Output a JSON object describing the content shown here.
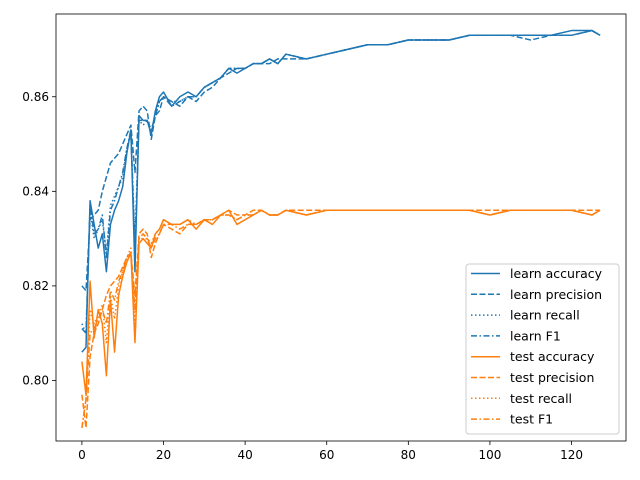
{
  "chart_data": {
    "type": "line",
    "title": "",
    "xlabel": "",
    "ylabel": "",
    "xlim": [
      -6.35,
      133.35
    ],
    "ylim": [
      0.7872,
      0.8775
    ],
    "xticks": [
      0,
      20,
      40,
      60,
      80,
      100,
      120
    ],
    "yticks": [
      0.8,
      0.82,
      0.84,
      0.86
    ],
    "ytick_labels": [
      "0.80",
      "0.82",
      "0.84",
      "0.86"
    ],
    "grid": false,
    "legend_position": "lower right",
    "colors": {
      "learn": "#1f77b4",
      "test": "#ff7f0e"
    },
    "series": [
      {
        "name": "learn accuracy",
        "color": "#1f77b4",
        "dash": "solid",
        "x": [
          0,
          1,
          2,
          3,
          4,
          5,
          6,
          7,
          8,
          9,
          10,
          11,
          12,
          13,
          14,
          15,
          16,
          17,
          18,
          19,
          20,
          22,
          24,
          26,
          28,
          30,
          32,
          34,
          36,
          38,
          40,
          42,
          44,
          46,
          48,
          50,
          55,
          60,
          65,
          70,
          75,
          80,
          85,
          90,
          95,
          100,
          105,
          110,
          115,
          120,
          125,
          127
        ],
        "y": [
          0.806,
          0.807,
          0.838,
          0.833,
          0.828,
          0.831,
          0.823,
          0.833,
          0.836,
          0.838,
          0.841,
          0.848,
          0.853,
          0.823,
          0.856,
          0.855,
          0.855,
          0.852,
          0.857,
          0.86,
          0.861,
          0.858,
          0.86,
          0.861,
          0.86,
          0.862,
          0.863,
          0.864,
          0.866,
          0.865,
          0.866,
          0.867,
          0.867,
          0.868,
          0.867,
          0.869,
          0.868,
          0.869,
          0.87,
          0.871,
          0.871,
          0.872,
          0.872,
          0.872,
          0.873,
          0.873,
          0.873,
          0.873,
          0.873,
          0.874,
          0.874,
          0.873
        ]
      },
      {
        "name": "learn precision",
        "color": "#1f77b4",
        "dash": "dashed",
        "x": [
          0,
          1,
          2,
          3,
          4,
          5,
          6,
          7,
          8,
          9,
          10,
          11,
          12,
          13,
          14,
          15,
          16,
          17,
          18,
          19,
          20,
          22,
          24,
          26,
          28,
          30,
          32,
          34,
          36,
          38,
          40,
          42,
          44,
          46,
          48,
          50,
          55,
          60,
          65,
          70,
          75,
          80,
          85,
          90,
          95,
          100,
          105,
          110,
          115,
          120,
          125,
          127
        ],
        "y": [
          0.82,
          0.819,
          0.834,
          0.835,
          0.836,
          0.84,
          0.843,
          0.846,
          0.847,
          0.848,
          0.85,
          0.852,
          0.854,
          0.844,
          0.857,
          0.858,
          0.857,
          0.851,
          0.856,
          0.857,
          0.86,
          0.859,
          0.858,
          0.86,
          0.859,
          0.861,
          0.862,
          0.864,
          0.865,
          0.866,
          0.866,
          0.867,
          0.867,
          0.867,
          0.868,
          0.868,
          0.868,
          0.869,
          0.87,
          0.871,
          0.871,
          0.872,
          0.872,
          0.872,
          0.873,
          0.873,
          0.873,
          0.872,
          0.873,
          0.873,
          0.874,
          0.873
        ]
      },
      {
        "name": "learn recall",
        "color": "#1f77b4",
        "dash": "dotted",
        "x": [
          0,
          1,
          2,
          3,
          4,
          5,
          6,
          7,
          8,
          9,
          10,
          11,
          12,
          13,
          14,
          15,
          16,
          17,
          18,
          19,
          20,
          22,
          24,
          26,
          28,
          30,
          32,
          34,
          36,
          38,
          40,
          42,
          44,
          46,
          48,
          50,
          55,
          60,
          65,
          70,
          75,
          80,
          85,
          90,
          95,
          100,
          105,
          110,
          115,
          120,
          125,
          127
        ],
        "y": [
          0.812,
          0.81,
          0.836,
          0.83,
          0.832,
          0.834,
          0.827,
          0.837,
          0.839,
          0.841,
          0.843,
          0.849,
          0.852,
          0.829,
          0.855,
          0.854,
          0.855,
          0.853,
          0.856,
          0.859,
          0.86,
          0.859,
          0.859,
          0.86,
          0.86,
          0.862,
          0.863,
          0.864,
          0.866,
          0.866,
          0.866,
          0.867,
          0.867,
          0.868,
          0.867,
          0.869,
          0.868,
          0.869,
          0.87,
          0.871,
          0.871,
          0.872,
          0.872,
          0.872,
          0.873,
          0.873,
          0.873,
          0.873,
          0.873,
          0.873,
          0.874,
          0.873
        ]
      },
      {
        "name": "learn F1",
        "color": "#1f77b4",
        "dash": "dashdot",
        "x": [
          0,
          1,
          2,
          3,
          4,
          5,
          6,
          7,
          8,
          9,
          10,
          11,
          12,
          13,
          14,
          15,
          16,
          17,
          18,
          19,
          20,
          22,
          24,
          26,
          28,
          30,
          32,
          34,
          36,
          38,
          40,
          42,
          44,
          46,
          48,
          50,
          55,
          60,
          65,
          70,
          75,
          80,
          85,
          90,
          95,
          100,
          105,
          110,
          115,
          120,
          125,
          127
        ],
        "y": [
          0.811,
          0.81,
          0.837,
          0.831,
          0.832,
          0.835,
          0.826,
          0.836,
          0.838,
          0.841,
          0.844,
          0.849,
          0.853,
          0.828,
          0.855,
          0.855,
          0.855,
          0.853,
          0.856,
          0.859,
          0.86,
          0.858,
          0.859,
          0.86,
          0.86,
          0.862,
          0.863,
          0.864,
          0.866,
          0.866,
          0.866,
          0.867,
          0.867,
          0.868,
          0.867,
          0.869,
          0.868,
          0.869,
          0.87,
          0.871,
          0.871,
          0.872,
          0.872,
          0.872,
          0.873,
          0.873,
          0.873,
          0.873,
          0.873,
          0.873,
          0.874,
          0.873
        ]
      },
      {
        "name": "test accuracy",
        "color": "#ff7f0e",
        "dash": "solid",
        "x": [
          0,
          1,
          2,
          3,
          4,
          5,
          6,
          7,
          8,
          9,
          10,
          11,
          12,
          13,
          14,
          15,
          16,
          17,
          18,
          19,
          20,
          22,
          24,
          26,
          28,
          30,
          32,
          34,
          36,
          38,
          40,
          42,
          44,
          46,
          48,
          50,
          55,
          60,
          65,
          70,
          75,
          80,
          85,
          90,
          95,
          100,
          105,
          110,
          115,
          120,
          125,
          127
        ],
        "y": [
          0.804,
          0.797,
          0.821,
          0.809,
          0.815,
          0.812,
          0.801,
          0.817,
          0.806,
          0.818,
          0.822,
          0.825,
          0.827,
          0.808,
          0.829,
          0.83,
          0.829,
          0.828,
          0.831,
          0.832,
          0.834,
          0.833,
          0.833,
          0.834,
          0.832,
          0.834,
          0.833,
          0.835,
          0.836,
          0.833,
          0.834,
          0.835,
          0.836,
          0.835,
          0.835,
          0.836,
          0.835,
          0.836,
          0.836,
          0.836,
          0.836,
          0.836,
          0.836,
          0.836,
          0.836,
          0.835,
          0.836,
          0.836,
          0.836,
          0.836,
          0.835,
          0.836
        ]
      },
      {
        "name": "test precision",
        "color": "#ff7f0e",
        "dash": "dashed",
        "x": [
          0,
          1,
          2,
          3,
          4,
          5,
          6,
          7,
          8,
          9,
          10,
          11,
          12,
          13,
          14,
          15,
          16,
          17,
          18,
          19,
          20,
          22,
          24,
          26,
          28,
          30,
          32,
          34,
          36,
          38,
          40,
          42,
          44,
          46,
          48,
          50,
          55,
          60,
          65,
          70,
          75,
          80,
          85,
          90,
          95,
          100,
          105,
          110,
          115,
          120,
          125,
          127
        ],
        "y": [
          0.797,
          0.79,
          0.805,
          0.81,
          0.812,
          0.815,
          0.818,
          0.82,
          0.821,
          0.822,
          0.824,
          0.826,
          0.827,
          0.818,
          0.831,
          0.832,
          0.831,
          0.826,
          0.829,
          0.831,
          0.833,
          0.832,
          0.831,
          0.833,
          0.833,
          0.834,
          0.834,
          0.835,
          0.836,
          0.835,
          0.835,
          0.836,
          0.836,
          0.835,
          0.835,
          0.836,
          0.836,
          0.836,
          0.836,
          0.836,
          0.836,
          0.836,
          0.836,
          0.836,
          0.836,
          0.836,
          0.836,
          0.836,
          0.836,
          0.836,
          0.836,
          0.836
        ]
      },
      {
        "name": "test recall",
        "color": "#ff7f0e",
        "dash": "dotted",
        "x": [
          0,
          1,
          2,
          3,
          4,
          5,
          6,
          7,
          8,
          9,
          10,
          11,
          12,
          13,
          14,
          15,
          16,
          17,
          18,
          19,
          20,
          22,
          24,
          26,
          28,
          30,
          32,
          34,
          36,
          38,
          40,
          42,
          44,
          46,
          48,
          50,
          55,
          60,
          65,
          70,
          75,
          80,
          85,
          90,
          95,
          100,
          105,
          110,
          115,
          120,
          125,
          127
        ],
        "y": [
          0.79,
          0.796,
          0.815,
          0.812,
          0.814,
          0.816,
          0.808,
          0.818,
          0.813,
          0.82,
          0.823,
          0.826,
          0.828,
          0.812,
          0.83,
          0.83,
          0.83,
          0.829,
          0.831,
          0.832,
          0.834,
          0.833,
          0.833,
          0.834,
          0.833,
          0.834,
          0.834,
          0.835,
          0.835,
          0.834,
          0.835,
          0.835,
          0.836,
          0.835,
          0.835,
          0.836,
          0.835,
          0.836,
          0.836,
          0.836,
          0.836,
          0.836,
          0.836,
          0.836,
          0.836,
          0.835,
          0.836,
          0.836,
          0.836,
          0.836,
          0.835,
          0.836
        ]
      },
      {
        "name": "test F1",
        "color": "#ff7f0e",
        "dash": "dashdot",
        "x": [
          0,
          1,
          2,
          3,
          4,
          5,
          6,
          7,
          8,
          9,
          10,
          11,
          12,
          13,
          14,
          15,
          16,
          17,
          18,
          19,
          20,
          22,
          24,
          26,
          28,
          30,
          32,
          34,
          36,
          38,
          40,
          42,
          44,
          46,
          48,
          50,
          55,
          60,
          65,
          70,
          75,
          80,
          85,
          90,
          95,
          100,
          105,
          110,
          115,
          120,
          125,
          127
        ],
        "y": [
          0.79,
          0.796,
          0.81,
          0.811,
          0.813,
          0.815,
          0.812,
          0.819,
          0.817,
          0.821,
          0.823,
          0.826,
          0.827,
          0.815,
          0.83,
          0.831,
          0.83,
          0.828,
          0.83,
          0.831,
          0.833,
          0.833,
          0.832,
          0.833,
          0.833,
          0.834,
          0.834,
          0.835,
          0.835,
          0.834,
          0.835,
          0.835,
          0.836,
          0.835,
          0.835,
          0.836,
          0.835,
          0.836,
          0.836,
          0.836,
          0.836,
          0.836,
          0.836,
          0.836,
          0.836,
          0.835,
          0.836,
          0.836,
          0.836,
          0.836,
          0.835,
          0.836
        ]
      }
    ]
  }
}
